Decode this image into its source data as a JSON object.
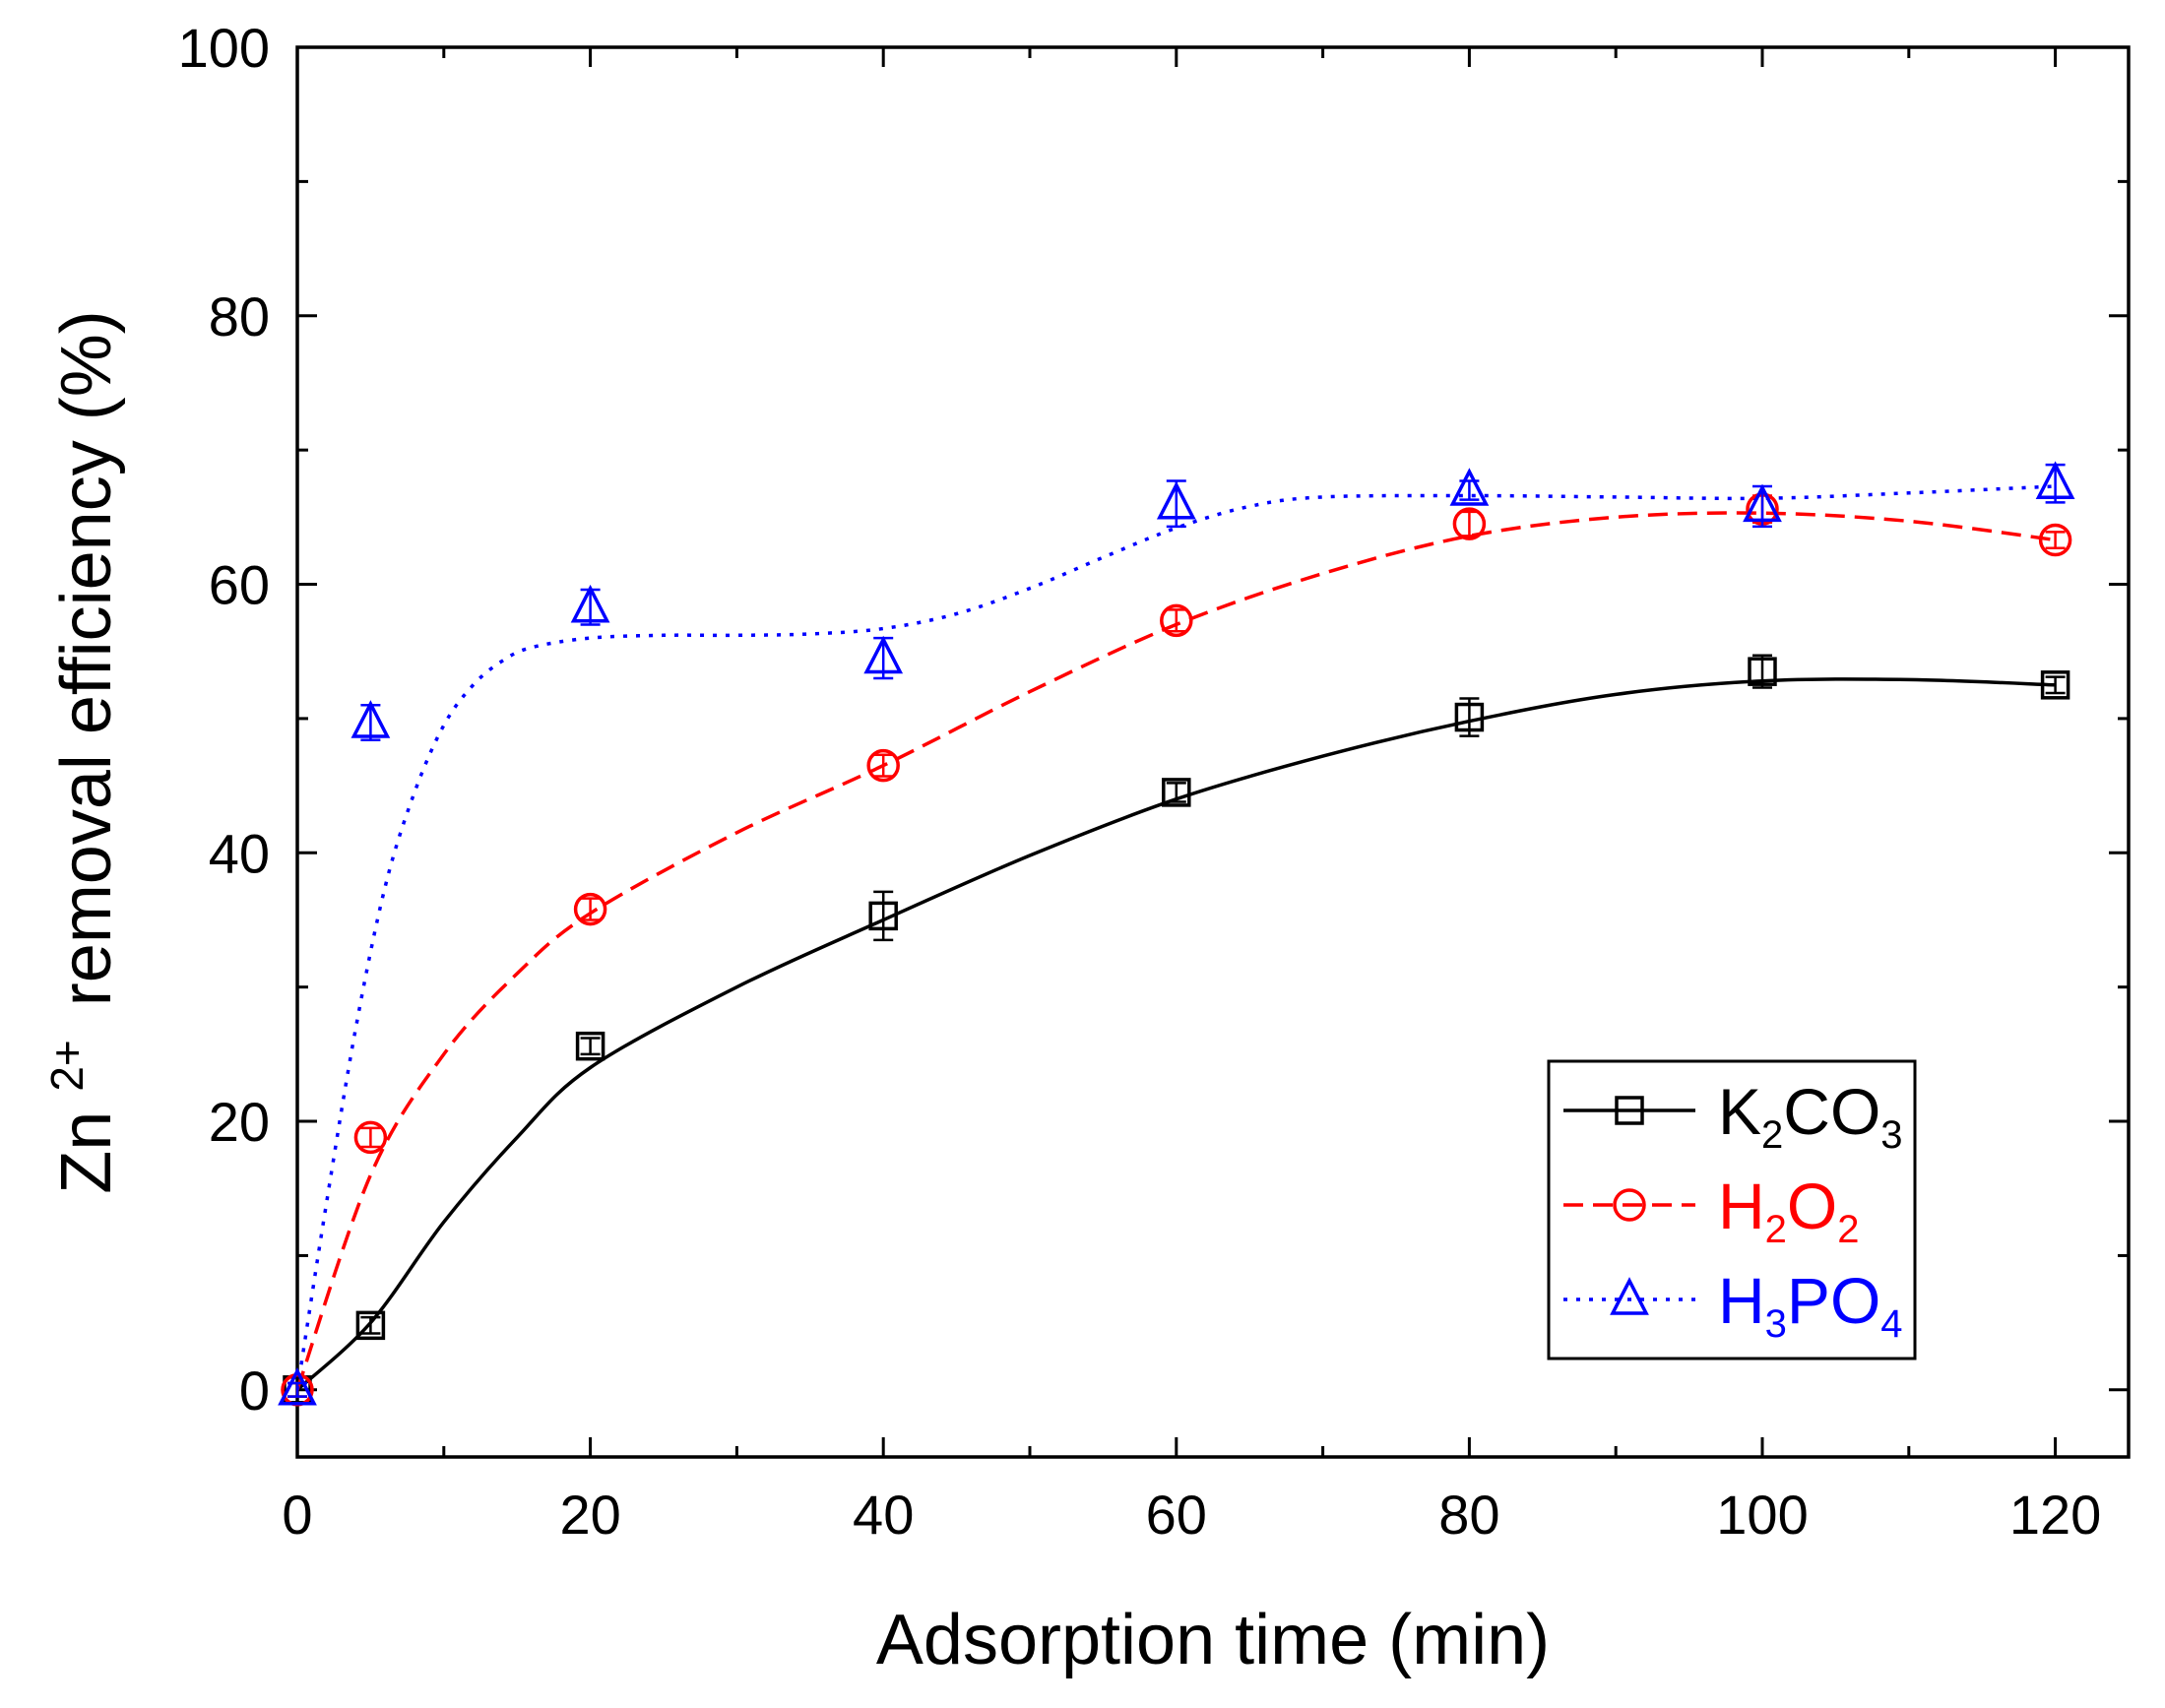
{
  "chart_data": {
    "type": "scatter",
    "title": "",
    "xlabel": "Adsorption time (min)",
    "ylabel": "removal efficiency (%)",
    "ylabel_base": "Zn",
    "ylabel_sup": "2+",
    "xlim": [
      0,
      125
    ],
    "ylim": [
      -5,
      100
    ],
    "xticks": [
      0,
      20,
      40,
      60,
      80,
      100,
      120
    ],
    "yticks": [
      0,
      20,
      40,
      60,
      80,
      100
    ],
    "legend_position": "lower-right",
    "series": [
      {
        "name": "K2CO3",
        "legend": {
          "parts": [
            [
              "K",
              ""
            ],
            [
              "2",
              "sub"
            ],
            [
              "CO",
              ""
            ],
            [
              "3",
              "sub"
            ]
          ]
        },
        "color": "#000000",
        "marker": "square",
        "line_style": "solid",
        "x": [
          0,
          5,
          20,
          40,
          60,
          80,
          100,
          120
        ],
        "y": [
          0,
          4.8,
          25.6,
          35.3,
          44.5,
          50.1,
          53.5,
          52.5
        ],
        "err": [
          0.5,
          0.6,
          0.6,
          1.8,
          0.7,
          1.4,
          1.2,
          0.6
        ],
        "fit_x": [
          0,
          5,
          10,
          15,
          20,
          30,
          40,
          50,
          60,
          70,
          80,
          90,
          100,
          110,
          120
        ],
        "fit_y": [
          0,
          5.0,
          12.5,
          18.8,
          24.0,
          30.0,
          35.0,
          39.8,
          44.0,
          47.2,
          49.8,
          51.8,
          52.8,
          52.9,
          52.5
        ]
      },
      {
        "name": "H2O2",
        "legend": {
          "parts": [
            [
              "H",
              ""
            ],
            [
              "2",
              "sub"
            ],
            [
              "O",
              ""
            ],
            [
              "2",
              "sub"
            ]
          ]
        },
        "color": "#ff0000",
        "marker": "circle",
        "line_style": "dashed",
        "x": [
          0,
          5,
          20,
          40,
          60,
          80,
          100,
          120
        ],
        "y": [
          0,
          18.8,
          35.8,
          46.5,
          57.3,
          64.5,
          65.6,
          63.3
        ],
        "err": [
          0.5,
          0.7,
          0.8,
          0.8,
          0.8,
          0.9,
          1.0,
          0.6
        ],
        "fit_x": [
          0,
          5,
          10,
          15,
          20,
          30,
          40,
          50,
          60,
          70,
          80,
          90,
          100,
          110,
          120
        ],
        "fit_y": [
          0,
          16.0,
          25.0,
          31.0,
          35.5,
          41.5,
          46.5,
          52.0,
          57.0,
          60.8,
          63.6,
          65.0,
          65.3,
          64.7,
          63.3
        ]
      },
      {
        "name": "H3PO4",
        "legend": {
          "parts": [
            [
              "H",
              ""
            ],
            [
              "3",
              "sub"
            ],
            [
              "PO",
              ""
            ],
            [
              "4",
              "sub"
            ]
          ]
        },
        "color": "#0000ff",
        "marker": "triangle",
        "line_style": "dotted",
        "x": [
          0,
          5,
          20,
          40,
          60,
          80,
          100,
          120
        ],
        "y": [
          0,
          49.7,
          58.3,
          54.5,
          66.0,
          67.0,
          65.8,
          67.5
        ],
        "err": [
          0.5,
          1.3,
          1.3,
          1.5,
          1.7,
          0.7,
          1.5,
          1.4
        ],
        "fit_x": [
          0,
          2,
          4,
          6,
          8,
          10,
          12,
          14,
          16,
          20,
          25,
          30,
          35,
          40,
          45,
          50,
          55,
          60,
          65,
          70,
          80,
          90,
          100,
          110,
          120
        ],
        "fit_y": [
          0,
          14.0,
          27.0,
          37.5,
          44.5,
          49.5,
          52.5,
          54.3,
          55.3,
          56.0,
          56.2,
          56.2,
          56.3,
          56.7,
          57.8,
          59.7,
          62.0,
          64.2,
          65.8,
          66.5,
          66.6,
          66.5,
          66.4,
          66.8,
          67.3
        ]
      }
    ]
  }
}
